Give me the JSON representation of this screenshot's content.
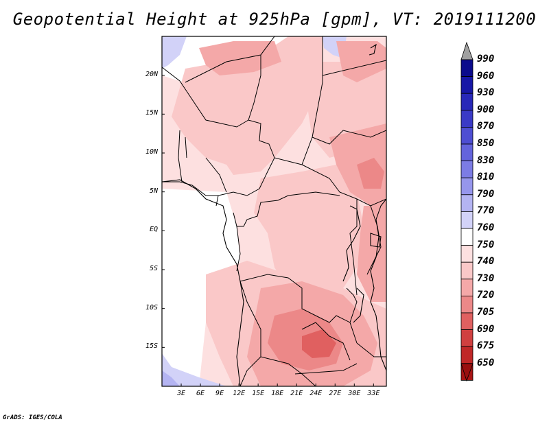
{
  "title": "Geopotential Height at 925hPa [gpm], VT: 2019111200",
  "footer": "GrADS: IGES/COLA",
  "map": {
    "projection": "lat-lon",
    "lon_range": [
      0,
      35
    ],
    "lat_range": [
      -20,
      25
    ],
    "x_ticks": [
      {
        "lon": 3,
        "label": "3E"
      },
      {
        "lon": 6,
        "label": "6E"
      },
      {
        "lon": 9,
        "label": "9E"
      },
      {
        "lon": 12,
        "label": "12E"
      },
      {
        "lon": 15,
        "label": "15E"
      },
      {
        "lon": 18,
        "label": "18E"
      },
      {
        "lon": 21,
        "label": "21E"
      },
      {
        "lon": 24,
        "label": "24E"
      },
      {
        "lon": 27,
        "label": "27E"
      },
      {
        "lon": 30,
        "label": "30E"
      },
      {
        "lon": 33,
        "label": "33E"
      }
    ],
    "y_ticks": [
      {
        "lat": 20,
        "label": "20N"
      },
      {
        "lat": 15,
        "label": "15N"
      },
      {
        "lat": 10,
        "label": "10N"
      },
      {
        "lat": 5,
        "label": "5N"
      },
      {
        "lat": 0,
        "label": "EQ"
      },
      {
        "lat": -5,
        "label": "5S"
      },
      {
        "lat": -10,
        "label": "10S"
      },
      {
        "lat": -15,
        "label": "15S"
      }
    ]
  },
  "colorbar": {
    "labels": [
      "990",
      "960",
      "930",
      "900",
      "870",
      "850",
      "830",
      "810",
      "790",
      "770",
      "760",
      "750",
      "740",
      "730",
      "720",
      "705",
      "690",
      "675",
      "650"
    ],
    "colors": [
      "#0b0b8c",
      "#1717a6",
      "#2828b8",
      "#3a3ac6",
      "#4e4ed2",
      "#6464dc",
      "#7c7ce4",
      "#9696ec",
      "#b4b4f2",
      "#d2d2f8",
      "#ffffff",
      "#fde0e0",
      "#fac8c8",
      "#f4a8a8",
      "#ec8888",
      "#e06060",
      "#d04040",
      "#c02828",
      "#a81414"
    ],
    "top_triangle": "#a0a0a0",
    "bottom_triangle": "#9a0f0f"
  }
}
